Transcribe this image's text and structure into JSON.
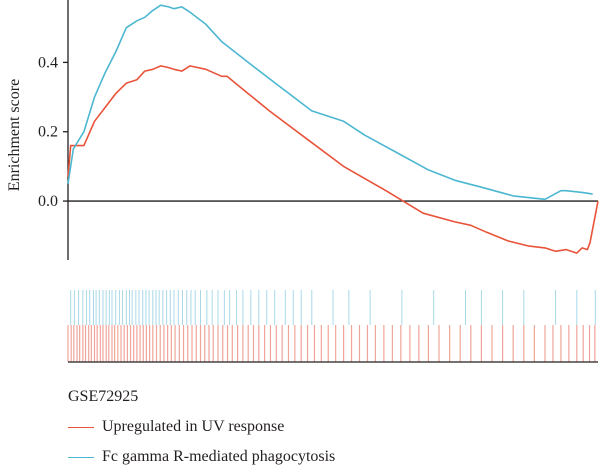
{
  "chart_data": {
    "type": "line",
    "title": "",
    "xlabel": "",
    "ylabel": "Enrichment score",
    "ylim": [
      -0.17,
      0.58
    ],
    "yticks": [
      0.0,
      0.2,
      0.4
    ],
    "ytick_labels": [
      "0.0",
      "0.2",
      "0.4"
    ],
    "legend_title": "GSE72925",
    "legend_position": "bottom-left",
    "x_range": [
      0,
      1
    ],
    "series": [
      {
        "name": "Upregulated in UV response",
        "color": "#e8533a",
        "x": [
          0.0,
          0.005,
          0.03,
          0.05,
          0.07,
          0.09,
          0.11,
          0.13,
          0.145,
          0.16,
          0.175,
          0.19,
          0.2,
          0.215,
          0.23,
          0.26,
          0.29,
          0.3,
          0.34,
          0.38,
          0.45,
          0.52,
          0.6,
          0.67,
          0.73,
          0.76,
          0.79,
          0.83,
          0.87,
          0.9,
          0.92,
          0.94,
          0.96,
          0.97,
          0.98,
          0.985,
          1.0
        ],
        "y": [
          0.07,
          0.16,
          0.16,
          0.23,
          0.27,
          0.31,
          0.34,
          0.35,
          0.375,
          0.38,
          0.39,
          0.385,
          0.38,
          0.375,
          0.39,
          0.38,
          0.36,
          0.36,
          0.31,
          0.26,
          0.18,
          0.1,
          0.03,
          -0.035,
          -0.06,
          -0.07,
          -0.09,
          -0.115,
          -0.13,
          -0.135,
          -0.145,
          -0.14,
          -0.15,
          -0.135,
          -0.14,
          -0.12,
          0.0
        ]
      },
      {
        "name": "Fc gamma R-mediated phagocytosis",
        "color": "#4db7d1",
        "x": [
          0.0,
          0.01,
          0.03,
          0.05,
          0.07,
          0.09,
          0.11,
          0.13,
          0.145,
          0.16,
          0.175,
          0.19,
          0.2,
          0.215,
          0.23,
          0.26,
          0.29,
          0.34,
          0.4,
          0.46,
          0.52,
          0.56,
          0.62,
          0.68,
          0.73,
          0.78,
          0.84,
          0.9,
          0.93,
          0.94,
          0.97,
          0.99
        ],
        "y": [
          0.05,
          0.15,
          0.2,
          0.3,
          0.37,
          0.43,
          0.5,
          0.52,
          0.53,
          0.55,
          0.565,
          0.56,
          0.555,
          0.56,
          0.545,
          0.51,
          0.46,
          0.4,
          0.33,
          0.26,
          0.23,
          0.19,
          0.14,
          0.09,
          0.06,
          0.04,
          0.015,
          0.005,
          0.03,
          0.03,
          0.025,
          0.02
        ]
      }
    ],
    "hits_blue": [
      0.005,
      0.012,
      0.02,
      0.028,
      0.035,
      0.041,
      0.048,
      0.053,
      0.059,
      0.066,
      0.072,
      0.078,
      0.083,
      0.09,
      0.097,
      0.103,
      0.11,
      0.116,
      0.121,
      0.128,
      0.134,
      0.141,
      0.147,
      0.153,
      0.16,
      0.166,
      0.172,
      0.179,
      0.186,
      0.193,
      0.2,
      0.208,
      0.216,
      0.224,
      0.232,
      0.24,
      0.25,
      0.262,
      0.272,
      0.283,
      0.295,
      0.305,
      0.318,
      0.33,
      0.345,
      0.36,
      0.375,
      0.39,
      0.41,
      0.425,
      0.44,
      0.46,
      0.5,
      0.53,
      0.57,
      0.63,
      0.69,
      0.75,
      0.78,
      0.82,
      0.86,
      0.92,
      0.96,
      0.995
    ],
    "hits_red": [
      0.0,
      0.006,
      0.011,
      0.017,
      0.022,
      0.028,
      0.033,
      0.039,
      0.044,
      0.05,
      0.055,
      0.061,
      0.066,
      0.072,
      0.077,
      0.083,
      0.088,
      0.094,
      0.1,
      0.106,
      0.112,
      0.118,
      0.124,
      0.13,
      0.136,
      0.142,
      0.148,
      0.154,
      0.16,
      0.167,
      0.174,
      0.181,
      0.188,
      0.195,
      0.202,
      0.21,
      0.218,
      0.226,
      0.234,
      0.242,
      0.25,
      0.258,
      0.266,
      0.274,
      0.283,
      0.292,
      0.301,
      0.31,
      0.32,
      0.33,
      0.34,
      0.35,
      0.36,
      0.371,
      0.382,
      0.393,
      0.404,
      0.416,
      0.428,
      0.44,
      0.452,
      0.465,
      0.478,
      0.491,
      0.505,
      0.52,
      0.535,
      0.55,
      0.565,
      0.58,
      0.596,
      0.612,
      0.628,
      0.645,
      0.662,
      0.68,
      0.7,
      0.72,
      0.74,
      0.76,
      0.78,
      0.8,
      0.82,
      0.84,
      0.86,
      0.88,
      0.9,
      0.915,
      0.93,
      0.945,
      0.96,
      0.972,
      0.984,
      0.994
    ]
  },
  "colors": {
    "axis": "#231f20",
    "red_series": "#e8533a",
    "blue_series": "#4db7d1",
    "blue_hits": "#a8d8e8",
    "red_hits": "#f0a59a"
  }
}
